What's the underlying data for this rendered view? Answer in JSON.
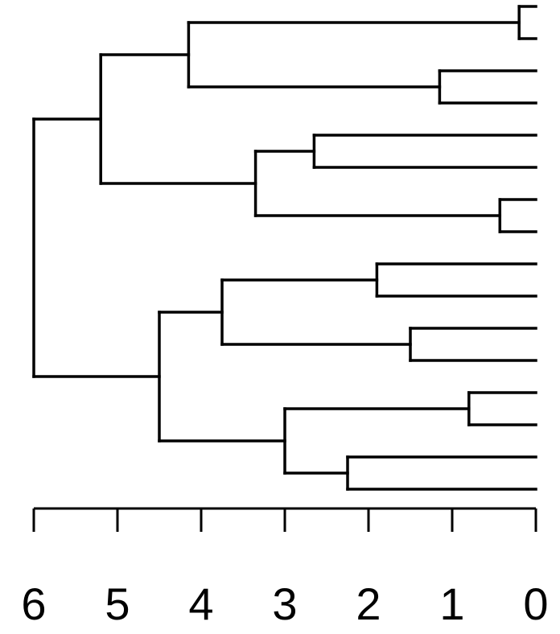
{
  "chart_data": {
    "type": "dendrogram",
    "orientation": "horizontal",
    "leaf_count": 16,
    "x_axis": {
      "range": [
        6,
        0
      ],
      "ticks": [
        6,
        5,
        4,
        3,
        2,
        1,
        0
      ],
      "tick_labels": [
        "6",
        "5",
        "4",
        "3",
        "2",
        "1",
        "0"
      ]
    },
    "tree": {
      "h": 6.0,
      "children": [
        {
          "h": 5.2,
          "children": [
            {
              "h": 4.15,
              "children": [
                {
                  "h": 0.2,
                  "children": [
                    {
                      "leaf": 1
                    },
                    {
                      "leaf": 2
                    }
                  ]
                },
                {
                  "h": 1.15,
                  "children": [
                    {
                      "leaf": 3
                    },
                    {
                      "leaf": 4
                    }
                  ]
                }
              ]
            },
            {
              "h": 3.35,
              "children": [
                {
                  "h": 2.65,
                  "children": [
                    {
                      "leaf": 5
                    },
                    {
                      "leaf": 6
                    }
                  ]
                },
                {
                  "h": 0.43,
                  "children": [
                    {
                      "leaf": 7
                    },
                    {
                      "leaf": 8
                    }
                  ]
                }
              ]
            }
          ]
        },
        {
          "h": 4.5,
          "children": [
            {
              "h": 3.75,
              "children": [
                {
                  "h": 1.9,
                  "children": [
                    {
                      "leaf": 9
                    },
                    {
                      "leaf": 10
                    }
                  ]
                },
                {
                  "h": 1.5,
                  "children": [
                    {
                      "leaf": 11
                    },
                    {
                      "leaf": 12
                    }
                  ]
                }
              ]
            },
            {
              "h": 3.0,
              "children": [
                {
                  "h": 0.8,
                  "children": [
                    {
                      "leaf": 13
                    },
                    {
                      "leaf": 14
                    }
                  ]
                },
                {
                  "h": 2.25,
                  "children": [
                    {
                      "leaf": 15
                    },
                    {
                      "leaf": 16
                    }
                  ]
                }
              ]
            }
          ]
        }
      ]
    }
  }
}
